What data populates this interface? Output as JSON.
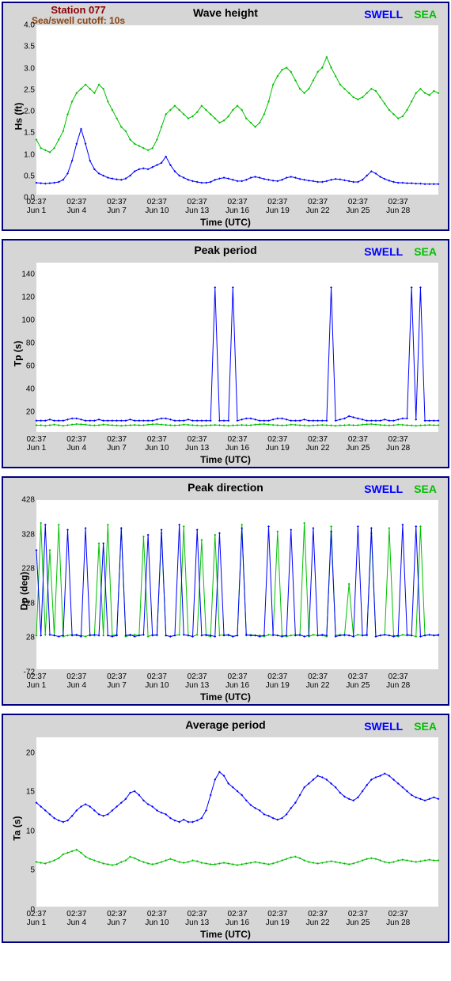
{
  "meta": {
    "station_name": "Station 077",
    "cutoff_text": "Sea/swell cutoff: 10s",
    "legend": {
      "swell": "SWELL",
      "sea": "SEA"
    },
    "xlabel": "Time (UTC)",
    "colors": {
      "swell": "#0000ff",
      "sea": "#00c000",
      "panel_border": "#000080",
      "panel_bg": "#d6d6d6",
      "plot_bg": "#ffffff",
      "station_name": "#8b0000",
      "cutoff": "#8b4513",
      "axis": "#000000"
    },
    "line_width": 1,
    "marker_size": 2,
    "x_range": [
      0,
      30
    ],
    "x_ticks": [
      {
        "pos": 0,
        "time": "02:37",
        "date": "Jun 1"
      },
      {
        "pos": 3,
        "time": "02:37",
        "date": "Jun 4"
      },
      {
        "pos": 6,
        "time": "02:37",
        "date": "Jun 7"
      },
      {
        "pos": 9,
        "time": "02:37",
        "date": "Jun 10"
      },
      {
        "pos": 12,
        "time": "02:37",
        "date": "Jun 13"
      },
      {
        "pos": 15,
        "time": "02:37",
        "date": "Jun 16"
      },
      {
        "pos": 18,
        "time": "02:37",
        "date": "Jun 19"
      },
      {
        "pos": 21,
        "time": "02:37",
        "date": "Jun 22"
      },
      {
        "pos": 24,
        "time": "02:37",
        "date": "Jun 25"
      },
      {
        "pos": 27,
        "time": "02:37",
        "date": "Jun 28"
      }
    ]
  },
  "panels": [
    {
      "id": "wave_height",
      "title": "Wave height",
      "ylabel": "Hs (ft)",
      "show_station": true,
      "ylim": [
        0.0,
        4.0
      ],
      "yticks": [
        0.0,
        0.5,
        1.0,
        1.5,
        2.0,
        2.5,
        3.0,
        3.5,
        4.0
      ],
      "series": {
        "sea": [
          1.3,
          1.1,
          1.05,
          1.0,
          1.1,
          1.3,
          1.5,
          1.9,
          2.2,
          2.4,
          2.5,
          2.6,
          2.5,
          2.4,
          2.6,
          2.5,
          2.2,
          2.0,
          1.8,
          1.6,
          1.5,
          1.3,
          1.2,
          1.15,
          1.1,
          1.05,
          1.1,
          1.3,
          1.6,
          1.9,
          2.0,
          2.1,
          2.0,
          1.9,
          1.8,
          1.85,
          1.95,
          2.1,
          2.0,
          1.9,
          1.8,
          1.7,
          1.75,
          1.85,
          2.0,
          2.1,
          2.0,
          1.8,
          1.7,
          1.6,
          1.7,
          1.9,
          2.2,
          2.6,
          2.8,
          2.95,
          3.0,
          2.9,
          2.7,
          2.5,
          2.4,
          2.5,
          2.7,
          2.9,
          3.0,
          3.25,
          3.0,
          2.8,
          2.6,
          2.5,
          2.4,
          2.3,
          2.25,
          2.3,
          2.4,
          2.5,
          2.45,
          2.3,
          2.15,
          2.0,
          1.9,
          1.8,
          1.85,
          2.0,
          2.2,
          2.4,
          2.5,
          2.4,
          2.35,
          2.45,
          2.4
        ],
        "swell": [
          0.28,
          0.27,
          0.26,
          0.27,
          0.28,
          0.3,
          0.35,
          0.5,
          0.8,
          1.2,
          1.55,
          1.2,
          0.8,
          0.6,
          0.5,
          0.45,
          0.4,
          0.38,
          0.36,
          0.35,
          0.38,
          0.45,
          0.55,
          0.6,
          0.62,
          0.6,
          0.65,
          0.7,
          0.75,
          0.9,
          0.7,
          0.55,
          0.45,
          0.4,
          0.35,
          0.32,
          0.3,
          0.28,
          0.28,
          0.3,
          0.35,
          0.38,
          0.4,
          0.38,
          0.35,
          0.32,
          0.32,
          0.35,
          0.4,
          0.42,
          0.4,
          0.37,
          0.35,
          0.33,
          0.32,
          0.35,
          0.4,
          0.42,
          0.4,
          0.37,
          0.35,
          0.33,
          0.32,
          0.3,
          0.3,
          0.32,
          0.35,
          0.37,
          0.36,
          0.34,
          0.32,
          0.3,
          0.3,
          0.35,
          0.45,
          0.55,
          0.5,
          0.42,
          0.37,
          0.33,
          0.3,
          0.28,
          0.28,
          0.27,
          0.27,
          0.26,
          0.26,
          0.25,
          0.25,
          0.25,
          0.25
        ]
      }
    },
    {
      "id": "peak_period",
      "title": "Peak period",
      "ylabel": "Tp (s)",
      "show_station": false,
      "ylim": [
        0,
        150
      ],
      "yticks": [
        20,
        40,
        60,
        80,
        100,
        120,
        140
      ],
      "series": {
        "sea": [
          6,
          6,
          5.5,
          6,
          6.5,
          6,
          5.5,
          6,
          6.5,
          7,
          6.8,
          6.5,
          6,
          5.8,
          6,
          6.5,
          6.2,
          6,
          5.8,
          5.5,
          5.8,
          6,
          6.2,
          6,
          6,
          6.5,
          6.8,
          7,
          6.5,
          6.2,
          6,
          5.8,
          6,
          6.5,
          6.3,
          6,
          5.8,
          5.5,
          5.8,
          6,
          6.2,
          6,
          5.8,
          5.5,
          5.8,
          6,
          6.2,
          6,
          6,
          6.5,
          6.8,
          7,
          6.5,
          6.2,
          6,
          5.8,
          6,
          6.5,
          6.3,
          6,
          5.8,
          5.5,
          5.8,
          6,
          6.2,
          6,
          5.8,
          5.5,
          5.8,
          6,
          6.2,
          6,
          6,
          6.5,
          6.8,
          7,
          6.5,
          6.2,
          6,
          5.8,
          6,
          6.5,
          6.3,
          6,
          5.8,
          5.5,
          5.8,
          6,
          6.2,
          6,
          6
        ],
        "swell": [
          10,
          10,
          10,
          11,
          10,
          10,
          10,
          11,
          12,
          12,
          11,
          10,
          10,
          10,
          11,
          10,
          10,
          10,
          10,
          10,
          10,
          11,
          10,
          10,
          10,
          10,
          10,
          11,
          12,
          12,
          11,
          10,
          10,
          10,
          11,
          10,
          10,
          10,
          10,
          10,
          128,
          10,
          10,
          10,
          128,
          10,
          11,
          12,
          12,
          11,
          10,
          10,
          10,
          11,
          12,
          12,
          11,
          10,
          10,
          10,
          11,
          10,
          10,
          10,
          10,
          10,
          128,
          10,
          11,
          12,
          14,
          13,
          12,
          11,
          10,
          10,
          10,
          10,
          11,
          10,
          10,
          11,
          12,
          12,
          128,
          11,
          128,
          10,
          10,
          10,
          10
        ]
      }
    },
    {
      "id": "peak_direction",
      "title": "Peak direction",
      "ylabel": "Dp (deg)",
      "show_station": false,
      "ylim": [
        -72,
        428
      ],
      "yticks": [
        -72,
        28,
        128,
        228,
        328,
        428
      ],
      "series": {
        "sea": [
          28,
          360,
          30,
          280,
          28,
          355,
          25,
          28,
          30,
          28,
          28,
          25,
          30,
          28,
          300,
          28,
          355,
          28,
          30,
          345,
          25,
          28,
          30,
          28,
          320,
          25,
          30,
          28,
          330,
          28,
          25,
          28,
          30,
          350,
          28,
          25,
          30,
          310,
          28,
          25,
          325,
          28,
          30,
          28,
          25,
          28,
          355,
          28,
          30,
          28,
          28,
          25,
          30,
          28,
          335,
          28,
          25,
          28,
          30,
          28,
          360,
          25,
          30,
          28,
          28,
          25,
          350,
          28,
          30,
          28,
          180,
          25,
          30,
          28,
          28,
          330,
          25,
          28,
          30,
          345,
          28,
          25,
          30,
          28,
          28,
          25,
          350,
          28,
          30,
          28,
          28
        ],
        "swell": [
          280,
          28,
          355,
          30,
          28,
          25,
          28,
          340,
          28,
          30,
          25,
          345,
          28,
          30,
          28,
          300,
          28,
          25,
          28,
          345,
          28,
          30,
          25,
          28,
          30,
          325,
          28,
          30,
          340,
          28,
          25,
          28,
          355,
          30,
          28,
          25,
          340,
          28,
          30,
          28,
          25,
          330,
          28,
          30,
          25,
          28,
          345,
          30,
          28,
          28,
          25,
          28,
          350,
          30,
          28,
          25,
          28,
          340,
          28,
          30,
          25,
          28,
          345,
          28,
          30,
          28,
          335,
          25,
          28,
          30,
          28,
          25,
          350,
          28,
          30,
          345,
          25,
          28,
          30,
          28,
          25,
          28,
          355,
          30,
          28,
          350,
          25,
          28,
          30,
          28,
          30
        ]
      }
    },
    {
      "id": "average_period",
      "title": "Average period",
      "ylabel": "Ta (s)",
      "show_station": false,
      "ylim": [
        0,
        22
      ],
      "yticks": [
        0,
        5,
        10,
        15,
        20
      ],
      "series": {
        "sea": [
          5.8,
          5.7,
          5.6,
          5.8,
          6.0,
          6.3,
          6.8,
          7.0,
          7.2,
          7.4,
          7.0,
          6.5,
          6.2,
          6.0,
          5.8,
          5.6,
          5.5,
          5.4,
          5.5,
          5.8,
          6.0,
          6.5,
          6.3,
          6.0,
          5.8,
          5.6,
          5.5,
          5.6,
          5.8,
          6.0,
          6.2,
          6.0,
          5.8,
          5.7,
          5.8,
          6.0,
          5.9,
          5.7,
          5.6,
          5.5,
          5.5,
          5.6,
          5.7,
          5.6,
          5.5,
          5.4,
          5.5,
          5.6,
          5.7,
          5.8,
          5.7,
          5.6,
          5.5,
          5.6,
          5.8,
          6.0,
          6.2,
          6.4,
          6.5,
          6.3,
          6.0,
          5.8,
          5.7,
          5.6,
          5.7,
          5.8,
          5.9,
          5.8,
          5.7,
          5.6,
          5.5,
          5.6,
          5.8,
          6.0,
          6.2,
          6.3,
          6.2,
          6.0,
          5.8,
          5.7,
          5.8,
          6.0,
          6.1,
          6.0,
          5.9,
          5.8,
          5.9,
          6.0,
          6.1,
          6.0,
          6.0
        ],
        "swell": [
          13.5,
          13.0,
          12.5,
          12.0,
          11.5,
          11.2,
          11.0,
          11.2,
          11.8,
          12.5,
          13.0,
          13.3,
          13.0,
          12.5,
          12.0,
          11.8,
          12.0,
          12.5,
          13.0,
          13.5,
          14.0,
          14.8,
          15.0,
          14.5,
          13.8,
          13.3,
          13.0,
          12.5,
          12.2,
          12.0,
          11.5,
          11.2,
          11.0,
          11.3,
          11.0,
          11.0,
          11.2,
          11.5,
          12.5,
          14.5,
          16.5,
          17.5,
          17.0,
          16.0,
          15.5,
          15.0,
          14.5,
          13.8,
          13.2,
          12.8,
          12.5,
          12.0,
          11.8,
          11.5,
          11.3,
          11.5,
          12.0,
          12.8,
          13.5,
          14.5,
          15.5,
          16.0,
          16.5,
          17.0,
          16.8,
          16.5,
          16.0,
          15.5,
          14.8,
          14.3,
          14.0,
          13.8,
          14.2,
          15.0,
          15.8,
          16.5,
          16.8,
          17.0,
          17.3,
          17.0,
          16.5,
          16.0,
          15.5,
          15.0,
          14.5,
          14.2,
          14.0,
          13.8,
          14.0,
          14.2,
          14.0
        ]
      }
    }
  ]
}
